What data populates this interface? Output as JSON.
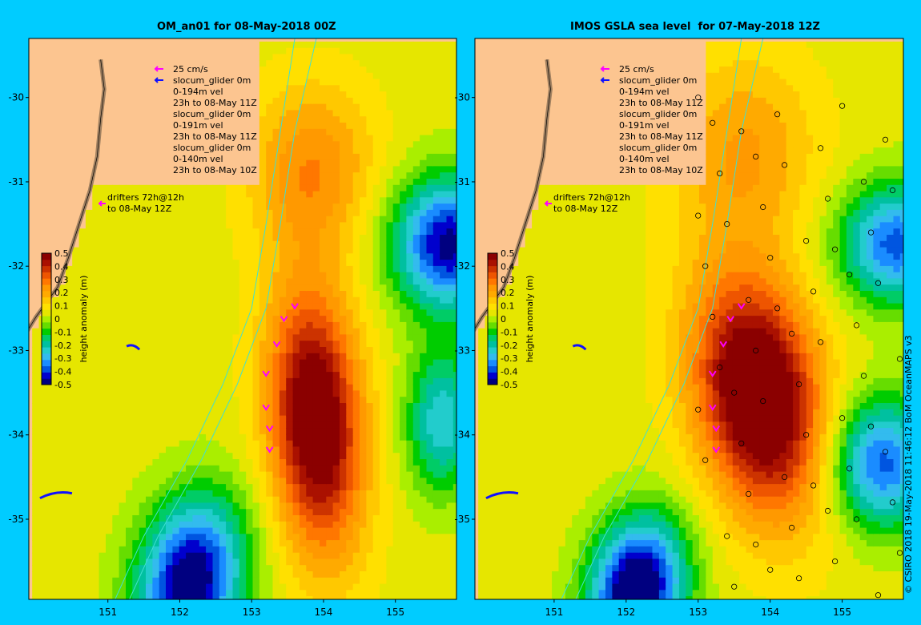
{
  "panels": [
    {
      "id": "left",
      "title": "OM_an01 for 08-May-2018 00Z",
      "legend_lines": [
        "25 cm/s",
        "slocum_glider 0m",
        "0-194m vel",
        "23h to 08-May 11Z",
        "slocum_glider 0m",
        "0-191m vel",
        "23h to 08-May 11Z",
        "slocum_glider 0m",
        "0-140m vel",
        "23h to 08-May 10Z"
      ],
      "drifter_lines": [
        "drifters 72h@12h",
        "to 08-May 12Z"
      ]
    },
    {
      "id": "right",
      "title": "IMOS GSLA sea level  for 07-May-2018 12Z",
      "legend_lines": [
        "25 cm/s",
        "slocum_glider 0m",
        "0-194m vel",
        "23h to 08-May 11Z",
        "slocum_glider 0m",
        "0-191m vel",
        "23h to 08-May 11Z",
        "slocum_glider 0m",
        "0-140m vel",
        "23h to 08-May 10Z"
      ],
      "drifter_lines": [
        "drifters 72h@12h",
        "to 08-May 12Z"
      ]
    }
  ],
  "axes": {
    "lat_ticks": [
      "-30",
      "-31",
      "-32",
      "-33",
      "-34",
      "-35"
    ],
    "lon_ticks": [
      "151",
      "152",
      "153",
      "154",
      "155"
    ]
  },
  "colorbar": {
    "label": "height anomaly (m)",
    "ticks": [
      "0.5",
      "0.4",
      "0.3",
      "0.2",
      "0.1",
      "0",
      "-0.1",
      "-0.2",
      "-0.3",
      "-0.4",
      "-0.5"
    ],
    "colors": [
      "#000080",
      "#0000cd",
      "#0055e0",
      "#1a8cff",
      "#33bbee",
      "#22cccc",
      "#00c0a0",
      "#00cc66",
      "#00cc00",
      "#66dd00",
      "#aaee00",
      "#e6e600",
      "#ffe000",
      "#ffc800",
      "#ffaa00",
      "#ff9900",
      "#ff7700",
      "#ee5500",
      "#cc3300",
      "#aa1100",
      "#8b0000"
    ]
  },
  "copyright": "© CSIRO 2018   19-May-2018 11:46:12 BoM OceanMAPS v3",
  "colors": {
    "background": "#00ccff",
    "land": "#fcc590",
    "glider": "#1010ff",
    "drifter": "#ff00ff",
    "contour": "#40e0d0"
  }
}
